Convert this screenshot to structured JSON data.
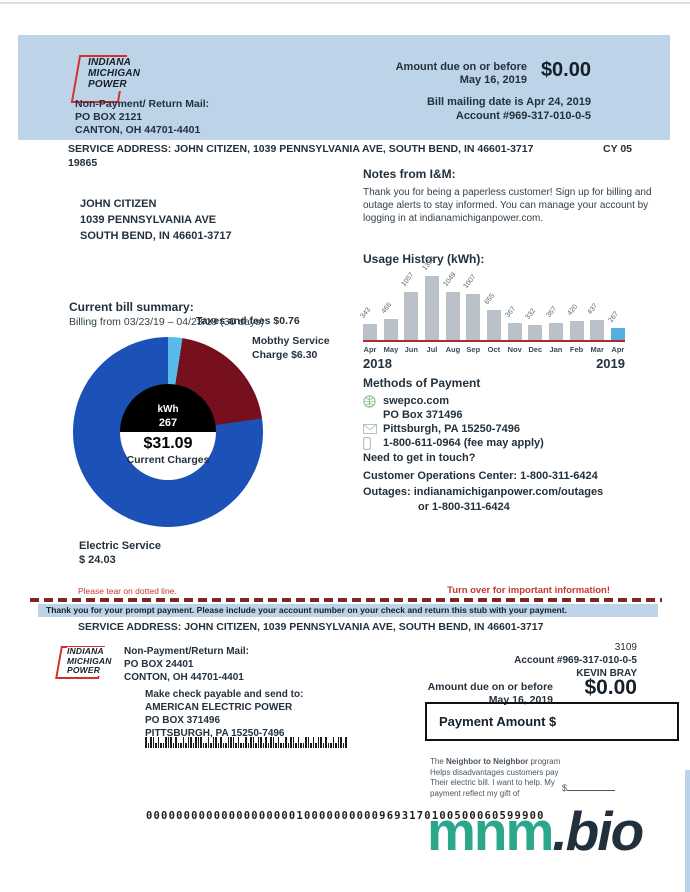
{
  "header": {
    "logo": [
      "INDIANA",
      "MICHIGAN",
      "POWER"
    ],
    "return_mail_label": "Non-Payment/ Return Mail:",
    "return_mail_po": "PO BOX 2121",
    "return_mail_city": "CANTON, OH 44701-4401",
    "amount_due_label": "Amount due on or before",
    "amount_due_date": "May 16, 2019",
    "amount_due_value": "$0.00",
    "mailing_date": "Bill mailing date is Apr 24, 2019",
    "account": "Account #969-317-010-0-5"
  },
  "service": {
    "address": "SERVICE ADDRESS: JOHN CITIZEN, 1039 PENNSYLVANIA AVE, SOUTH BEND, IN 46601-3717",
    "cycle": "CY 05",
    "route_code": "19865"
  },
  "customer": {
    "name": "JOHN CITIZEN",
    "street": "1039 PENNSYLVANIA AVE",
    "city_line": "SOUTH BEND, IN 46601-3717"
  },
  "notes": {
    "title": "Notes from I&M:",
    "body": "Thank you for being a paperless customer! Sign up for billing and outage alerts to stay informed. You can manage your account by logging in at indianamichiganpower.com."
  },
  "bill_summary": {
    "title": "Current bill summary:",
    "subtitle": "Billing from 03/23/19 – 04/23/19 (30 days)",
    "taxes_label": "Taxes and fees $0.76",
    "monthly_label_line1": "Mobthy Service",
    "monthly_label_line2": "Charge $6.30",
    "center_unit": "kWh",
    "center_kwh": "267",
    "center_amount": "$31.09",
    "center_caption": "Current Charges",
    "electric_label": "Electric Service",
    "electric_amount": "$ 24.03"
  },
  "usage": {
    "title": "Usage History (kWh):",
    "year_left": "2018",
    "year_right": "2019"
  },
  "chart_data": [
    {
      "type": "pie",
      "title": "Current bill summary donut",
      "slices": [
        {
          "label": "Taxes and fees",
          "value": 0.76,
          "color": "#57bae8"
        },
        {
          "label": "Monthly Service Charge",
          "value": 6.3,
          "color": "#76101f"
        },
        {
          "label": "Electric Service",
          "value": 24.03,
          "color": "#1c51b8"
        }
      ],
      "total": 31.09,
      "center": {
        "unit": "kWh",
        "kwh": 267,
        "amount": "$31.09",
        "caption": "Current Charges"
      }
    },
    {
      "type": "bar",
      "title": "Usage History (kWh)",
      "categories": [
        "Apr",
        "May",
        "Jun",
        "Jul",
        "Aug",
        "Sep",
        "Oct",
        "Nov",
        "Dec",
        "Jan",
        "Feb",
        "Mar",
        "Apr"
      ],
      "values": [
        343,
        466,
        1057,
        1398,
        1049,
        1007,
        655,
        367,
        332,
        367,
        420,
        437,
        267
      ],
      "highlight_index": 12,
      "bar_color": "#bac0c7",
      "highlight_color": "#57aede",
      "baseline_color": "#b12733",
      "x_years": {
        "left": "2018",
        "right": "2019"
      },
      "ylabel": "kWh"
    }
  ],
  "payment": {
    "title": "Methods of Payment",
    "rows": [
      {
        "icon": "globe-icon",
        "text": "swepco.com"
      },
      {
        "icon": "",
        "text": "PO Box 371496"
      },
      {
        "icon": "envelope-icon",
        "text": "Pittsburgh, PA 15250-7496"
      },
      {
        "icon": "phone-icon",
        "text": "1-800-611-0964 (fee may apply)"
      }
    ],
    "touch_title": "Need to get in touch?",
    "ops_line": "Customer Operations Center: 1-800-311-6424",
    "outages_line": "Outages: indianamichiganpower.com/outages",
    "outages_line2": "or 1-800-311-6424"
  },
  "tear": {
    "note": "Please tear on dotted line.",
    "turn_over": "Turn over for important information!",
    "thank_you": "Thank you for your prompt payment. Please include your account number on your check and return this stub with your payment.",
    "service_address": "SERVICE ADDRESS: JOHN CITIZEN, 1039 PENNSYLVANIA AVE, SOUTH BEND, IN 46601-3717"
  },
  "stub": {
    "logo": [
      "INDIANA",
      "MICHIGAN",
      "POWER"
    ],
    "return_mail_label": "Non-Payment/Return Mail:",
    "return_mail_po": "PO BOX 24401",
    "return_mail_city": "CONTON, OH 44701-4401",
    "doc_number": "3109",
    "account": "Account #969-317-010-0-5",
    "customer_name": "KEVIN BRAY",
    "amount_due_label": "Amount due on or before",
    "amount_due_date": "May 16, 2019",
    "amount_due_value": "$0.00",
    "payable_label": "Make check payable and send to:",
    "payable_name": "AMERICAN ELECTRIC POWER",
    "payable_po": "PO BOX 371496",
    "payable_city": "PITTSBURGH, PA 15250-7496",
    "payment_box_label": "Payment Amount $",
    "neighbor": {
      "prefix": "The ",
      "program": "Neighbor to Neighbor",
      "line1_rest": " program",
      "line2": "Helps disadvantages customers pay",
      "line3": "Their electric bill. I want to help. My",
      "line4": "payment reflect my gift of",
      "gift_label": "$"
    },
    "ocr_line": "00000000000000000000100000000009693170100500060599900"
  },
  "watermark": {
    "left": "mnm",
    "right": ".bio"
  }
}
